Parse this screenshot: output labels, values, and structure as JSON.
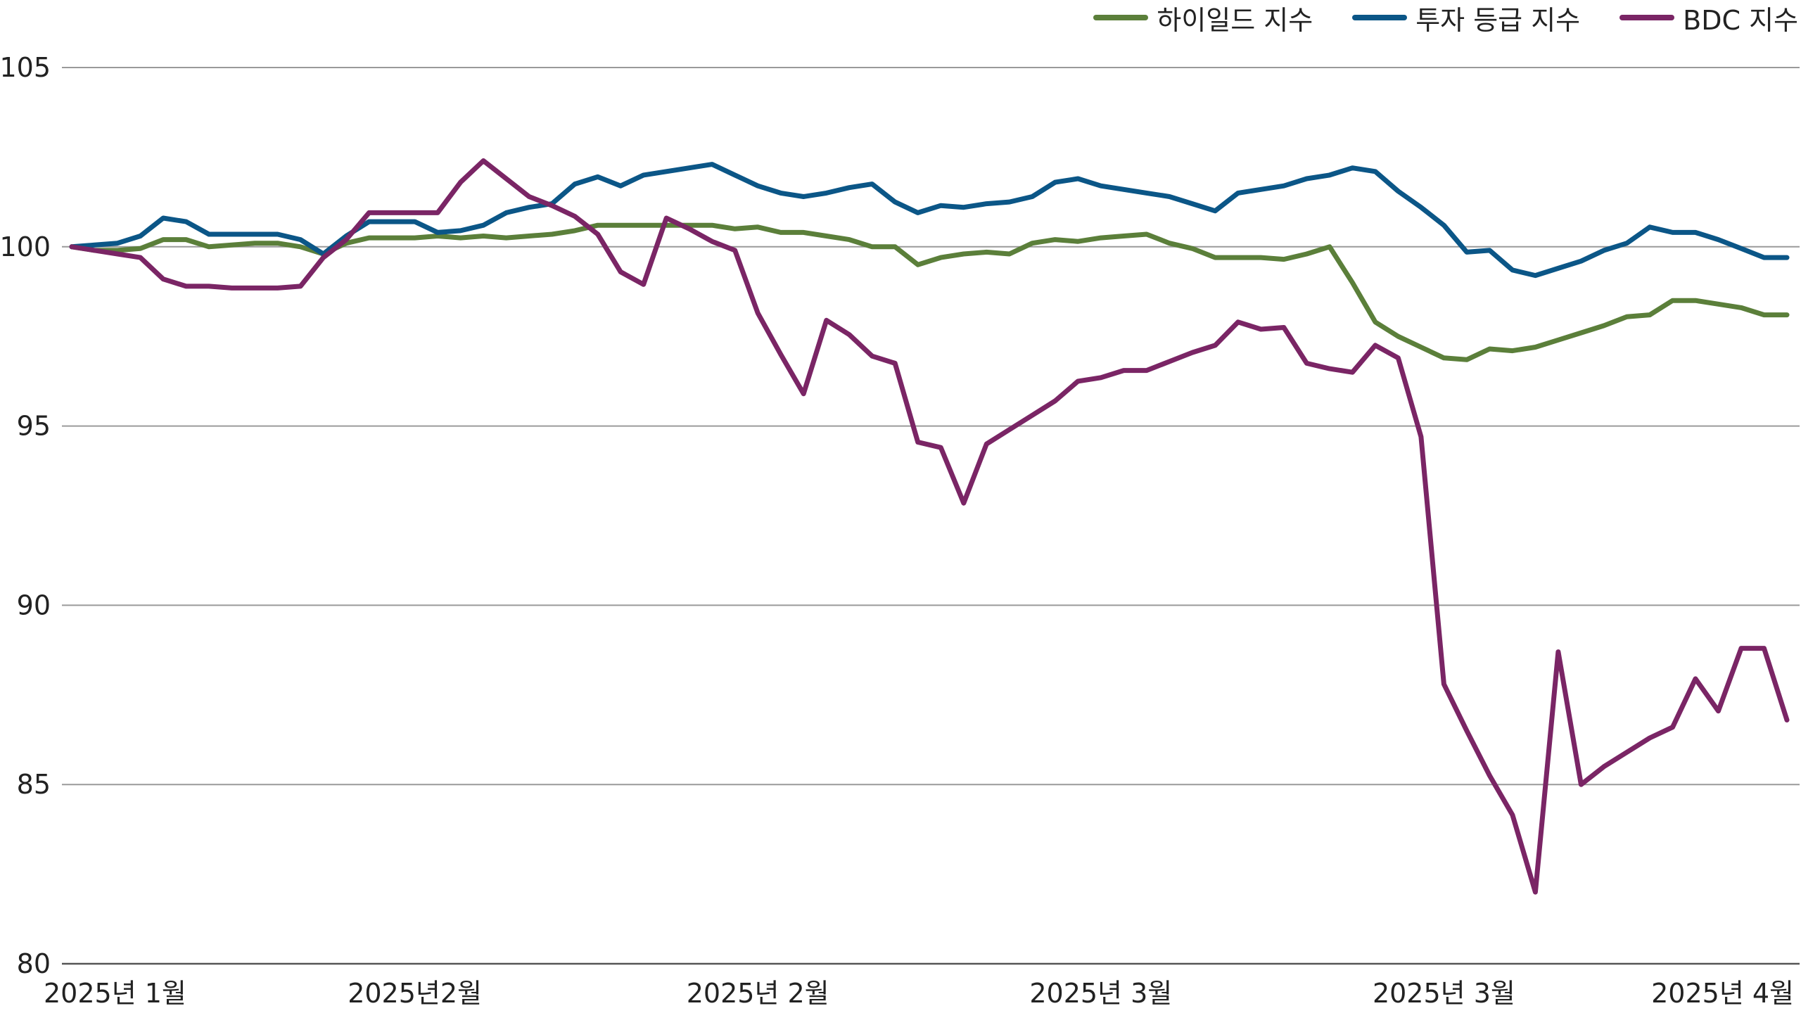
{
  "legend": {
    "items": [
      {
        "label": "하이일드 지수",
        "color": "#5b7f3a"
      },
      {
        "label": "투자 등급 지수",
        "color": "#0b5687"
      },
      {
        "label": "BDC 지수",
        "color": "#7a2565"
      }
    ]
  },
  "chart_data": {
    "type": "line",
    "title": "",
    "xlabel": "",
    "ylabel": "",
    "ylim": [
      80,
      105
    ],
    "yticks": [
      105,
      100,
      95,
      90,
      85,
      80
    ],
    "grid": true,
    "legend_position": "top-right",
    "x_tick_labels": [
      "2025년 1월",
      "2025년2월",
      "2025년 2월",
      "2025년 3월",
      "2025년 3월",
      "2025년 4월"
    ],
    "x_tick_index": [
      0,
      15,
      30,
      45,
      60,
      75
    ],
    "n_points": 76,
    "series": [
      {
        "name": "하이일드 지수",
        "color": "#5b7f3a",
        "values": [
          100.0,
          99.9,
          99.9,
          99.95,
          100.2,
          100.2,
          100.0,
          100.05,
          100.1,
          100.1,
          100.0,
          99.8,
          100.1,
          100.25,
          100.25,
          100.25,
          100.3,
          100.25,
          100.3,
          100.25,
          100.3,
          100.35,
          100.45,
          100.6,
          100.6,
          100.6,
          100.6,
          100.6,
          100.6,
          100.5,
          100.55,
          100.4,
          100.4,
          100.3,
          100.2,
          100.0,
          100.0,
          99.5,
          99.7,
          99.8,
          99.85,
          99.8,
          100.1,
          100.2,
          100.15,
          100.25,
          100.3,
          100.35,
          100.1,
          99.95,
          99.7,
          99.7,
          99.7,
          99.65,
          99.8,
          100.0,
          99.0,
          97.9,
          97.5,
          97.2,
          96.9,
          96.85,
          97.15,
          97.1,
          97.2,
          97.4,
          97.6,
          97.8,
          98.05,
          98.1,
          98.5,
          98.5,
          98.4,
          98.3,
          98.1,
          98.1
        ]
      },
      {
        "name": "투자 등급 지수",
        "color": "#0b5687",
        "values": [
          100.0,
          100.05,
          100.1,
          100.3,
          100.8,
          100.7,
          100.35,
          100.35,
          100.35,
          100.35,
          100.2,
          99.8,
          100.3,
          100.7,
          100.7,
          100.7,
          100.4,
          100.45,
          100.6,
          100.95,
          101.1,
          101.2,
          101.75,
          101.95,
          101.7,
          102.0,
          102.1,
          102.2,
          102.3,
          102.0,
          101.7,
          101.5,
          101.4,
          101.5,
          101.65,
          101.75,
          101.25,
          100.95,
          101.15,
          101.1,
          101.2,
          101.25,
          101.4,
          101.8,
          101.9,
          101.7,
          101.6,
          101.5,
          101.4,
          101.2,
          101.0,
          101.5,
          101.6,
          101.7,
          101.9,
          102.0,
          102.2,
          102.1,
          101.55,
          101.1,
          100.6,
          99.85,
          99.9,
          99.35,
          99.2,
          99.4,
          99.6,
          99.9,
          100.1,
          100.55,
          100.4,
          100.4,
          100.2,
          99.95,
          99.7,
          99.7
        ]
      },
      {
        "name": "BDC 지수",
        "color": "#7a2565",
        "values": [
          100.0,
          99.9,
          99.8,
          99.7,
          99.1,
          98.9,
          98.9,
          98.85,
          98.85,
          98.85,
          98.9,
          99.7,
          100.2,
          100.95,
          100.95,
          100.95,
          100.95,
          101.8,
          102.4,
          101.9,
          101.4,
          101.15,
          100.85,
          100.35,
          99.3,
          98.95,
          100.8,
          100.5,
          100.15,
          99.9,
          98.15,
          97.0,
          95.9,
          97.95,
          97.55,
          96.95,
          96.75,
          94.55,
          94.4,
          92.85,
          94.5,
          94.9,
          95.3,
          95.7,
          96.25,
          96.35,
          96.55,
          96.55,
          96.8,
          97.05,
          97.25,
          97.9,
          97.7,
          97.75,
          96.75,
          96.6,
          96.5,
          97.25,
          96.9,
          94.7,
          87.8,
          86.5,
          85.25,
          84.15,
          82.0,
          88.7,
          85.0,
          85.5,
          85.9,
          86.3,
          86.6,
          87.95,
          87.05,
          88.8,
          88.8,
          86.8
        ]
      }
    ]
  }
}
